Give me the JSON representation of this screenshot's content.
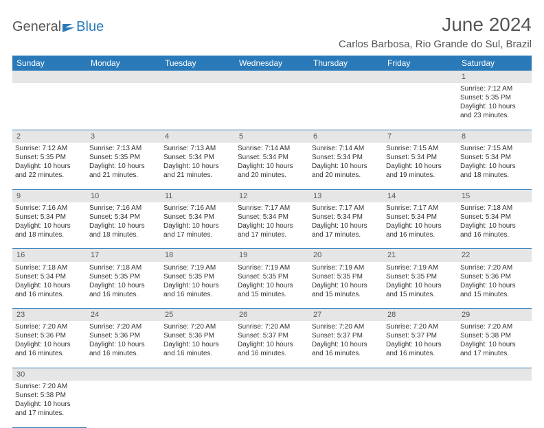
{
  "logo": {
    "part1": "General",
    "part2": "Blue"
  },
  "title": "June 2024",
  "location": "Carlos Barbosa, Rio Grande do Sul, Brazil",
  "colors": {
    "header_bg": "#2a7ab9",
    "header_text": "#ffffff",
    "daynum_bg": "#e6e6e6",
    "border": "#2a7ab9",
    "text": "#333333",
    "title_text": "#555555"
  },
  "day_headers": [
    "Sunday",
    "Monday",
    "Tuesday",
    "Wednesday",
    "Thursday",
    "Friday",
    "Saturday"
  ],
  "weeks": [
    {
      "nums": [
        "",
        "",
        "",
        "",
        "",
        "",
        "1"
      ],
      "cells": [
        null,
        null,
        null,
        null,
        null,
        null,
        {
          "sunrise": "Sunrise: 7:12 AM",
          "sunset": "Sunset: 5:35 PM",
          "day1": "Daylight: 10 hours",
          "day2": "and 23 minutes."
        }
      ]
    },
    {
      "nums": [
        "2",
        "3",
        "4",
        "5",
        "6",
        "7",
        "8"
      ],
      "cells": [
        {
          "sunrise": "Sunrise: 7:12 AM",
          "sunset": "Sunset: 5:35 PM",
          "day1": "Daylight: 10 hours",
          "day2": "and 22 minutes."
        },
        {
          "sunrise": "Sunrise: 7:13 AM",
          "sunset": "Sunset: 5:35 PM",
          "day1": "Daylight: 10 hours",
          "day2": "and 21 minutes."
        },
        {
          "sunrise": "Sunrise: 7:13 AM",
          "sunset": "Sunset: 5:34 PM",
          "day1": "Daylight: 10 hours",
          "day2": "and 21 minutes."
        },
        {
          "sunrise": "Sunrise: 7:14 AM",
          "sunset": "Sunset: 5:34 PM",
          "day1": "Daylight: 10 hours",
          "day2": "and 20 minutes."
        },
        {
          "sunrise": "Sunrise: 7:14 AM",
          "sunset": "Sunset: 5:34 PM",
          "day1": "Daylight: 10 hours",
          "day2": "and 20 minutes."
        },
        {
          "sunrise": "Sunrise: 7:15 AM",
          "sunset": "Sunset: 5:34 PM",
          "day1": "Daylight: 10 hours",
          "day2": "and 19 minutes."
        },
        {
          "sunrise": "Sunrise: 7:15 AM",
          "sunset": "Sunset: 5:34 PM",
          "day1": "Daylight: 10 hours",
          "day2": "and 18 minutes."
        }
      ]
    },
    {
      "nums": [
        "9",
        "10",
        "11",
        "12",
        "13",
        "14",
        "15"
      ],
      "cells": [
        {
          "sunrise": "Sunrise: 7:16 AM",
          "sunset": "Sunset: 5:34 PM",
          "day1": "Daylight: 10 hours",
          "day2": "and 18 minutes."
        },
        {
          "sunrise": "Sunrise: 7:16 AM",
          "sunset": "Sunset: 5:34 PM",
          "day1": "Daylight: 10 hours",
          "day2": "and 18 minutes."
        },
        {
          "sunrise": "Sunrise: 7:16 AM",
          "sunset": "Sunset: 5:34 PM",
          "day1": "Daylight: 10 hours",
          "day2": "and 17 minutes."
        },
        {
          "sunrise": "Sunrise: 7:17 AM",
          "sunset": "Sunset: 5:34 PM",
          "day1": "Daylight: 10 hours",
          "day2": "and 17 minutes."
        },
        {
          "sunrise": "Sunrise: 7:17 AM",
          "sunset": "Sunset: 5:34 PM",
          "day1": "Daylight: 10 hours",
          "day2": "and 17 minutes."
        },
        {
          "sunrise": "Sunrise: 7:17 AM",
          "sunset": "Sunset: 5:34 PM",
          "day1": "Daylight: 10 hours",
          "day2": "and 16 minutes."
        },
        {
          "sunrise": "Sunrise: 7:18 AM",
          "sunset": "Sunset: 5:34 PM",
          "day1": "Daylight: 10 hours",
          "day2": "and 16 minutes."
        }
      ]
    },
    {
      "nums": [
        "16",
        "17",
        "18",
        "19",
        "20",
        "21",
        "22"
      ],
      "cells": [
        {
          "sunrise": "Sunrise: 7:18 AM",
          "sunset": "Sunset: 5:34 PM",
          "day1": "Daylight: 10 hours",
          "day2": "and 16 minutes."
        },
        {
          "sunrise": "Sunrise: 7:18 AM",
          "sunset": "Sunset: 5:35 PM",
          "day1": "Daylight: 10 hours",
          "day2": "and 16 minutes."
        },
        {
          "sunrise": "Sunrise: 7:19 AM",
          "sunset": "Sunset: 5:35 PM",
          "day1": "Daylight: 10 hours",
          "day2": "and 16 minutes."
        },
        {
          "sunrise": "Sunrise: 7:19 AM",
          "sunset": "Sunset: 5:35 PM",
          "day1": "Daylight: 10 hours",
          "day2": "and 15 minutes."
        },
        {
          "sunrise": "Sunrise: 7:19 AM",
          "sunset": "Sunset: 5:35 PM",
          "day1": "Daylight: 10 hours",
          "day2": "and 15 minutes."
        },
        {
          "sunrise": "Sunrise: 7:19 AM",
          "sunset": "Sunset: 5:35 PM",
          "day1": "Daylight: 10 hours",
          "day2": "and 15 minutes."
        },
        {
          "sunrise": "Sunrise: 7:20 AM",
          "sunset": "Sunset: 5:36 PM",
          "day1": "Daylight: 10 hours",
          "day2": "and 15 minutes."
        }
      ]
    },
    {
      "nums": [
        "23",
        "24",
        "25",
        "26",
        "27",
        "28",
        "29"
      ],
      "cells": [
        {
          "sunrise": "Sunrise: 7:20 AM",
          "sunset": "Sunset: 5:36 PM",
          "day1": "Daylight: 10 hours",
          "day2": "and 16 minutes."
        },
        {
          "sunrise": "Sunrise: 7:20 AM",
          "sunset": "Sunset: 5:36 PM",
          "day1": "Daylight: 10 hours",
          "day2": "and 16 minutes."
        },
        {
          "sunrise": "Sunrise: 7:20 AM",
          "sunset": "Sunset: 5:36 PM",
          "day1": "Daylight: 10 hours",
          "day2": "and 16 minutes."
        },
        {
          "sunrise": "Sunrise: 7:20 AM",
          "sunset": "Sunset: 5:37 PM",
          "day1": "Daylight: 10 hours",
          "day2": "and 16 minutes."
        },
        {
          "sunrise": "Sunrise: 7:20 AM",
          "sunset": "Sunset: 5:37 PM",
          "day1": "Daylight: 10 hours",
          "day2": "and 16 minutes."
        },
        {
          "sunrise": "Sunrise: 7:20 AM",
          "sunset": "Sunset: 5:37 PM",
          "day1": "Daylight: 10 hours",
          "day2": "and 16 minutes."
        },
        {
          "sunrise": "Sunrise: 7:20 AM",
          "sunset": "Sunset: 5:38 PM",
          "day1": "Daylight: 10 hours",
          "day2": "and 17 minutes."
        }
      ]
    },
    {
      "nums": [
        "30",
        "",
        "",
        "",
        "",
        "",
        ""
      ],
      "cells": [
        {
          "sunrise": "Sunrise: 7:20 AM",
          "sunset": "Sunset: 5:38 PM",
          "day1": "Daylight: 10 hours",
          "day2": "and 17 minutes."
        },
        null,
        null,
        null,
        null,
        null,
        null
      ]
    }
  ]
}
